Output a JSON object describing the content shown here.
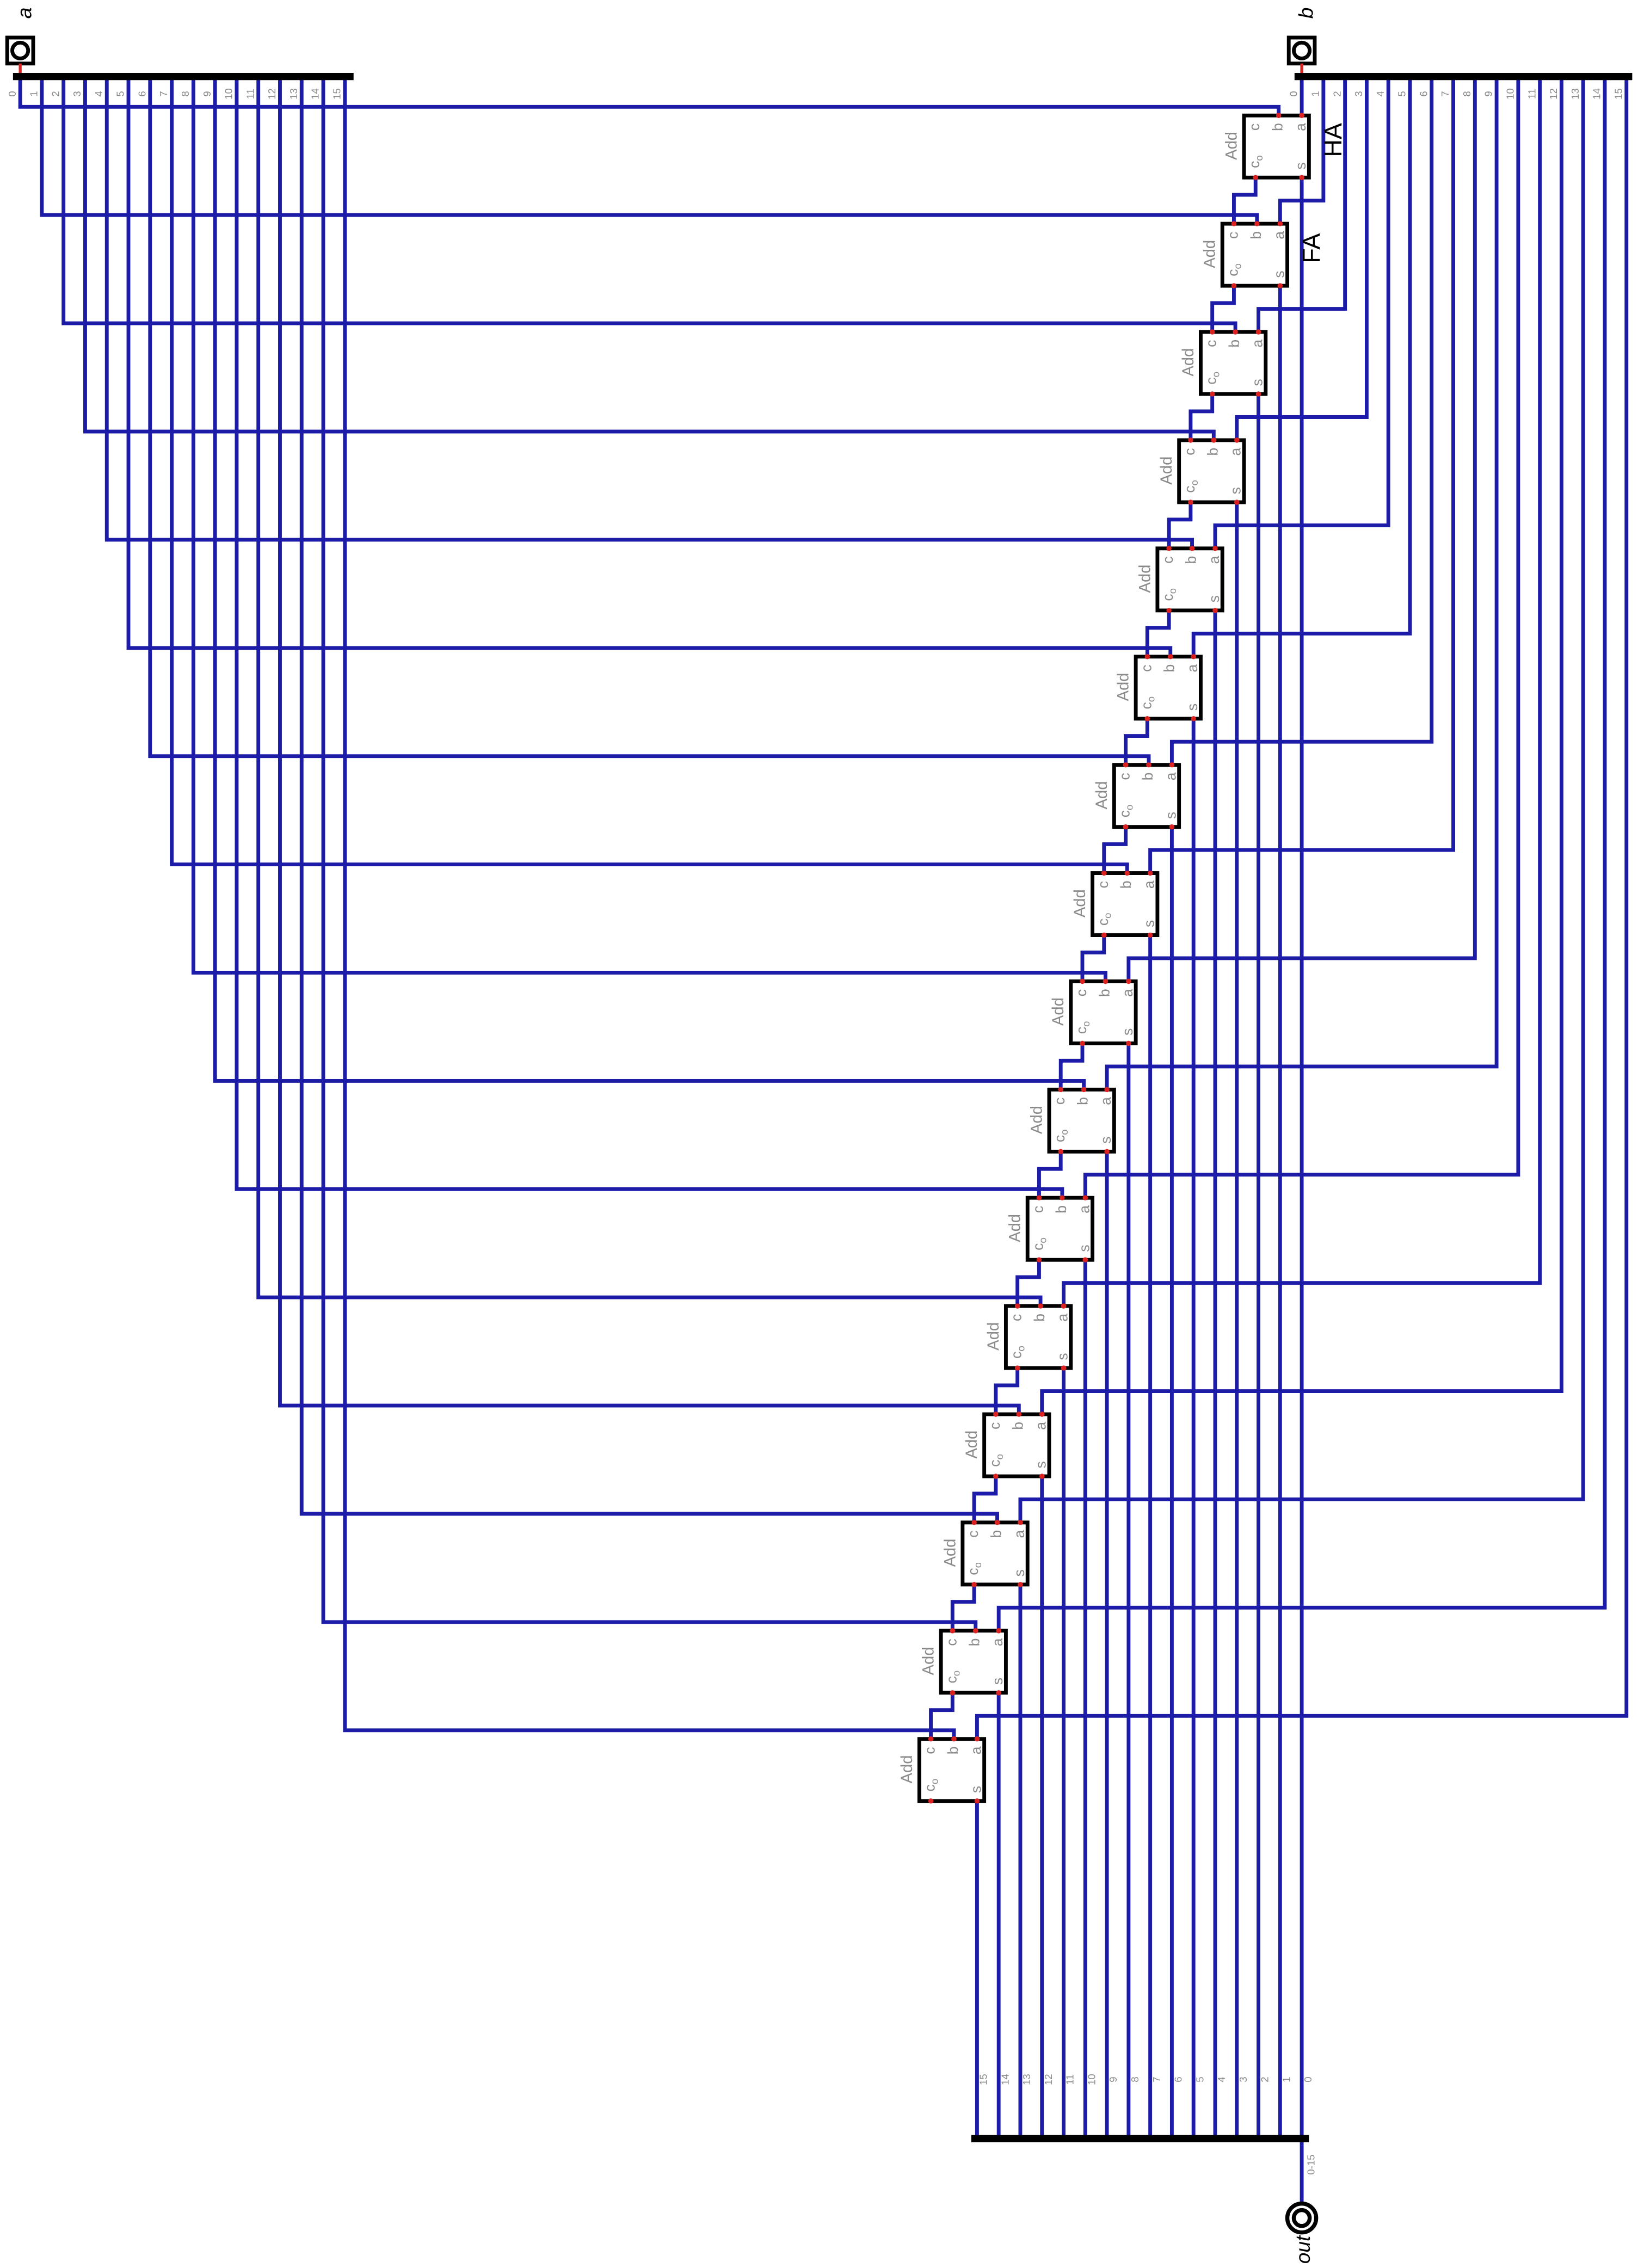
{
  "pins": {
    "a": "a",
    "b": "b",
    "out": "out"
  },
  "out_range": "0-15",
  "bits": [
    "0",
    "1",
    "2",
    "3",
    "4",
    "5",
    "6",
    "7",
    "8",
    "9",
    "10",
    "11",
    "12",
    "13",
    "14",
    "15"
  ],
  "adder": {
    "label": "Add",
    "ports": [
      "c",
      "b",
      "a",
      "c",
      "s"
    ],
    "carry_sub": "o"
  },
  "annotations": {
    "half_adder": "HA",
    "full_adder": "FA"
  }
}
